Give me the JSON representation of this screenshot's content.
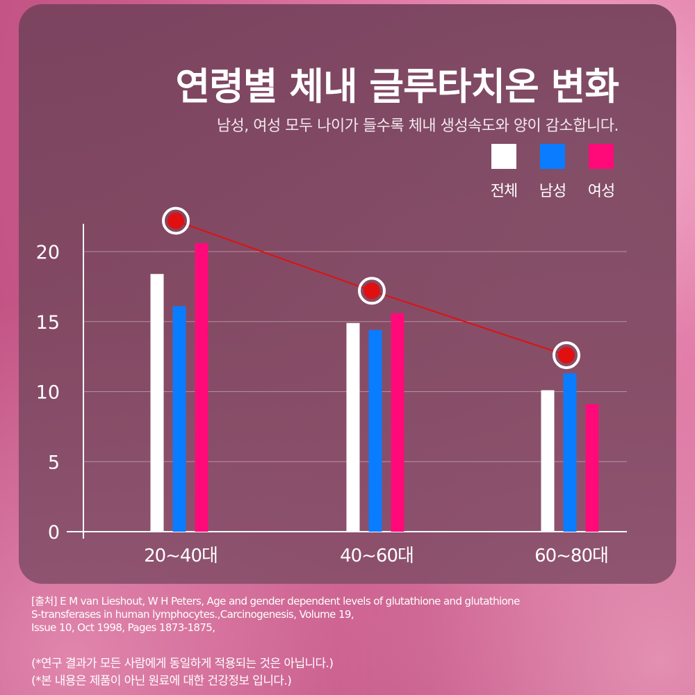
{
  "header": {
    "title": "연령별 체내 글루타치온 변화",
    "subtitle": "남성, 여성 모두 나이가 들수록 체내 생성속도와 양이 감소합니다."
  },
  "legend": [
    {
      "label": "전체",
      "color": "#ffffff"
    },
    {
      "label": "남성",
      "color": "#0a7cff"
    },
    {
      "label": "여성",
      "color": "#ff0a78"
    }
  ],
  "chart_data": {
    "type": "bar",
    "categories": [
      "20~40대",
      "40~60대",
      "60~80대"
    ],
    "series": [
      {
        "name": "전체",
        "color": "#ffffff",
        "values": [
          18.4,
          14.9,
          10.1
        ]
      },
      {
        "name": "남성",
        "color": "#0a7cff",
        "values": [
          16.1,
          14.4,
          11.3
        ]
      },
      {
        "name": "여성",
        "color": "#ff0a78",
        "values": [
          20.6,
          15.6,
          9.1
        ]
      }
    ],
    "trend_line": {
      "color": "#e01010",
      "values": [
        22.2,
        17.2,
        12.6
      ]
    },
    "yticks": [
      0,
      5,
      10,
      15,
      20
    ],
    "ylim": [
      0,
      22
    ],
    "grid": true,
    "legend_position": "top-right"
  },
  "footer": {
    "source_lines": [
      "[출처] E M van Lieshout, W H Peters, Age and gender dependent levels of glutathione and glutathione",
      "S-transferases in human lymphocytes.,Carcinogenesis, Volume 19,",
      "Issue 10, Oct 1998, Pages 1873-1875,"
    ],
    "notes": [
      "(*연구 결과가 모든 사람에게 동일하게 적용되는 것은 아닙니다.)",
      "(*본 내용은 제품이 아닌 원료에 대한 건강정보 입니다.)"
    ]
  }
}
